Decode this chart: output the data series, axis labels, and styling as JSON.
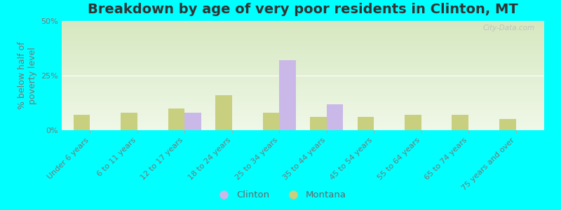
{
  "title": "Breakdown by age of very poor residents in Clinton, MT",
  "ylabel": "% below half of\npoverty level",
  "categories": [
    "Under 6 years",
    "6 to 11 years",
    "12 to 17 years",
    "18 to 24 years",
    "25 to 34 years",
    "35 to 44 years",
    "45 to 54 years",
    "55 to 64 years",
    "65 to 74 years",
    "75 years and over"
  ],
  "clinton_values": [
    0,
    0,
    8,
    0,
    32,
    12,
    0,
    0,
    0,
    0
  ],
  "montana_values": [
    7,
    8,
    10,
    16,
    8,
    6,
    6,
    7,
    7,
    5
  ],
  "clinton_color": "#c9b8e8",
  "montana_color": "#c8cf7e",
  "background_color": "#00ffff",
  "plot_bg_top": "#d6e8c0",
  "plot_bg_bottom": "#f0f8e8",
  "ylim": [
    0,
    50
  ],
  "yticks": [
    0,
    25,
    50
  ],
  "ytick_labels": [
    "0%",
    "25%",
    "50%"
  ],
  "bar_width": 0.35,
  "title_fontsize": 14,
  "axis_label_fontsize": 9,
  "tick_fontsize": 8,
  "legend_clinton": "Clinton",
  "legend_montana": "Montana",
  "watermark": "City-Data.com"
}
